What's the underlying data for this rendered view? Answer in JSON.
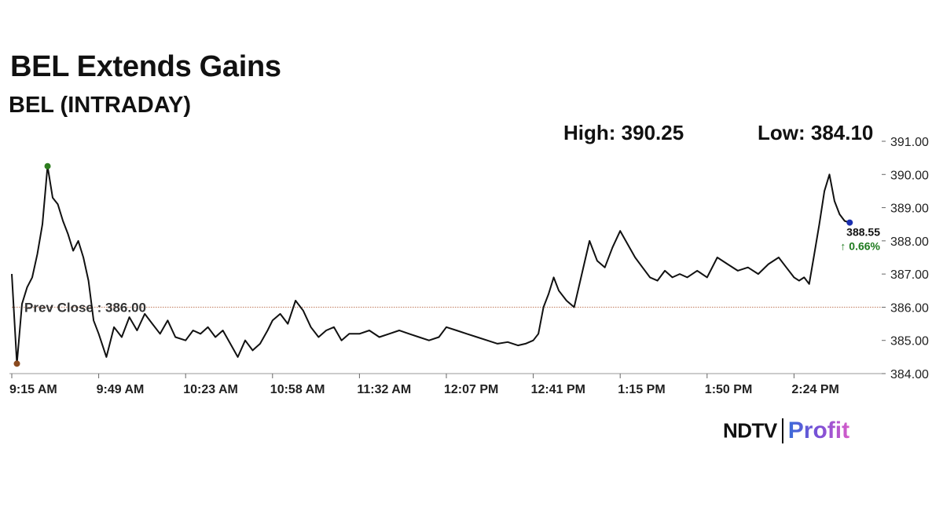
{
  "header": {
    "title": "BEL Extends Gains",
    "subtitle": "BEL (INTRADAY)",
    "high_text": "High: 390.25",
    "low_text": "Low: 384.10"
  },
  "logo": {
    "brand": "NDTV",
    "product": "Profit"
  },
  "colors": {
    "line": "#111111",
    "prev_close_line": "#c0785a",
    "high_marker": "#2e7d1f",
    "low_marker": "#8a4a1f",
    "last_marker": "#1a2fb0",
    "change_positive": "#1e7a1e"
  },
  "chart_data": {
    "type": "line",
    "title": "BEL Extends Gains",
    "subtitle": "BEL (INTRADAY)",
    "x_tick_labels": [
      "9:15 AM",
      "9:49 AM",
      "10:23 AM",
      "10:58 AM",
      "11:32 AM",
      "12:07 PM",
      "12:41 PM",
      "1:15 PM",
      "1:50 PM",
      "2:24 PM"
    ],
    "y_ticks": [
      "384.00",
      "385.00",
      "386.00",
      "387.00",
      "388.00",
      "389.00",
      "390.00",
      "391.00"
    ],
    "ylim": [
      384,
      391
    ],
    "y_axis_side": "right",
    "prev_close": {
      "label": "Prev Close : 386.00",
      "value": 386.0
    },
    "high": 390.25,
    "low": 384.1,
    "last": {
      "value_label": "388.55",
      "change_label": "↑ 0.66%",
      "value": 388.55
    },
    "series": [
      {
        "x": [
          "9:15 AM",
          "9:17 AM",
          "9:19 AM",
          "9:21 AM",
          "9:23 AM",
          "9:25 AM",
          "9:27 AM",
          "9:29 AM",
          "9:31 AM",
          "9:33 AM",
          "9:35 AM",
          "9:37 AM",
          "9:39 AM",
          "9:41 AM",
          "9:43 AM",
          "9:45 AM",
          "9:47 AM",
          "9:49 AM",
          "9:52 AM",
          "9:55 AM",
          "9:58 AM",
          "10:01 AM",
          "10:04 AM",
          "10:07 AM",
          "10:10 AM",
          "10:13 AM",
          "10:16 AM",
          "10:19 AM",
          "10:23 AM",
          "10:26 AM",
          "10:29 AM",
          "10:32 AM",
          "10:35 AM",
          "10:38 AM",
          "10:41 AM",
          "10:44 AM",
          "10:47 AM",
          "10:50 AM",
          "10:53 AM",
          "10:56 AM",
          "10:58 AM",
          "11:01 AM",
          "11:04 AM",
          "11:07 AM",
          "11:10 AM",
          "11:13 AM",
          "11:16 AM",
          "11:19 AM",
          "11:22 AM",
          "11:25 AM",
          "11:28 AM",
          "11:32 AM",
          "11:36 AM",
          "11:40 AM",
          "11:44 AM",
          "11:48 AM",
          "11:52 AM",
          "11:56 AM",
          "12:00 PM",
          "12:04 PM",
          "12:07 PM",
          "12:11 PM",
          "12:15 PM",
          "12:19 PM",
          "12:23 PM",
          "12:27 PM",
          "12:31 PM",
          "12:35 PM",
          "12:38 PM",
          "12:41 PM",
          "12:43 PM",
          "12:45 PM",
          "12:47 PM",
          "12:49 PM",
          "12:51 PM",
          "12:54 PM",
          "12:57 PM",
          "1:00 PM",
          "1:03 PM",
          "1:06 PM",
          "1:09 PM",
          "1:12 PM",
          "1:15 PM",
          "1:18 PM",
          "1:21 PM",
          "1:24 PM",
          "1:27 PM",
          "1:30 PM",
          "1:33 PM",
          "1:36 PM",
          "1:39 PM",
          "1:42 PM",
          "1:46 PM",
          "1:50 PM",
          "1:54 PM",
          "1:58 PM",
          "2:02 PM",
          "2:06 PM",
          "2:10 PM",
          "2:14 PM",
          "2:18 PM",
          "2:21 PM",
          "2:24 PM",
          "2:26 PM",
          "2:28 PM",
          "2:30 PM",
          "2:32 PM",
          "2:34 PM",
          "2:36 PM",
          "2:38 PM",
          "2:40 PM",
          "2:42 PM",
          "2:44 PM",
          "2:46 PM"
        ],
        "values": [
          387.0,
          384.3,
          386.1,
          386.6,
          386.9,
          387.6,
          388.5,
          390.25,
          389.3,
          389.1,
          388.6,
          388.2,
          387.7,
          388.0,
          387.5,
          386.8,
          385.6,
          385.2,
          384.5,
          385.4,
          385.1,
          385.7,
          385.3,
          385.8,
          385.5,
          385.2,
          385.6,
          385.1,
          385.0,
          385.3,
          385.2,
          385.4,
          385.1,
          385.3,
          384.9,
          384.5,
          385.0,
          384.7,
          384.9,
          385.3,
          385.6,
          385.8,
          385.5,
          386.2,
          385.9,
          385.4,
          385.1,
          385.3,
          385.4,
          385.0,
          385.2,
          385.2,
          385.3,
          385.1,
          385.2,
          385.3,
          385.2,
          385.1,
          385.0,
          385.1,
          385.4,
          385.3,
          385.2,
          385.1,
          385.0,
          384.9,
          384.95,
          384.85,
          384.9,
          385.0,
          385.2,
          386.0,
          386.4,
          386.9,
          386.5,
          386.2,
          386.0,
          387.0,
          388.0,
          387.4,
          387.2,
          387.8,
          388.3,
          387.9,
          387.5,
          387.2,
          386.9,
          386.8,
          387.1,
          386.9,
          387.0,
          386.9,
          387.1,
          386.9,
          387.5,
          387.3,
          387.1,
          387.2,
          387.0,
          387.3,
          387.5,
          387.2,
          386.9,
          386.8,
          386.9,
          386.7,
          387.6,
          388.5,
          389.5,
          390.0,
          389.2,
          388.8,
          388.6,
          388.55
        ]
      }
    ]
  }
}
